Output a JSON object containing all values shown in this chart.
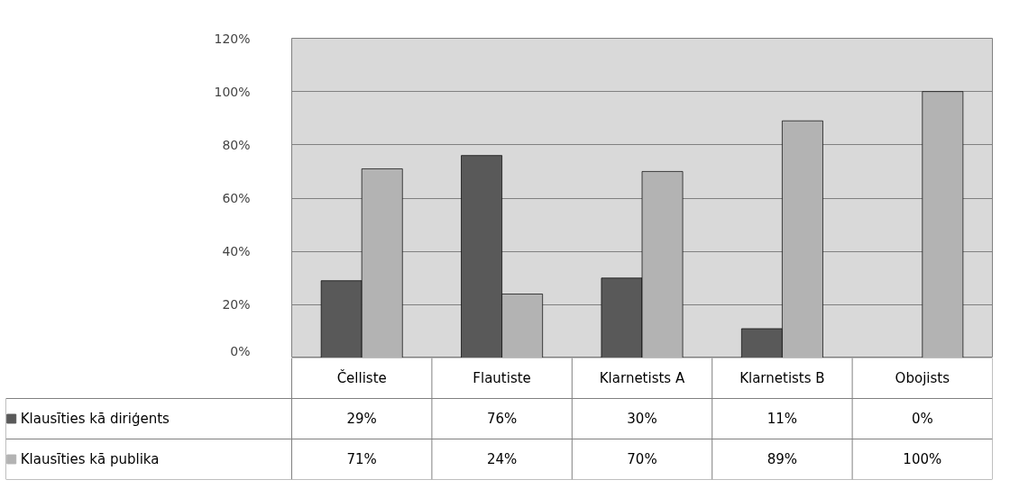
{
  "chart_data": {
    "type": "bar",
    "categories": [
      "Čelliste",
      "Flautiste",
      "Klarnetists A",
      "Klarnetists B",
      "Obojists"
    ],
    "series": [
      {
        "name": "Klausīties kā diriģents",
        "color": "#595959",
        "values": [
          29,
          76,
          30,
          11,
          0
        ],
        "value_labels": [
          "29%",
          "76%",
          "30%",
          "11%",
          "0%"
        ]
      },
      {
        "name": "Klausīties kā publika",
        "color": "#b3b3b3",
        "values": [
          71,
          24,
          70,
          89,
          100
        ],
        "value_labels": [
          "71%",
          "24%",
          "70%",
          "89%",
          "100%"
        ]
      }
    ],
    "ylim": [
      0,
      120
    ],
    "yticks": [
      {
        "value": 0,
        "label": "0%"
      },
      {
        "value": 20,
        "label": "20%"
      },
      {
        "value": 40,
        "label": "40%"
      },
      {
        "value": 60,
        "label": "60%"
      },
      {
        "value": 80,
        "label": "80%"
      },
      {
        "value": 100,
        "label": "100%"
      },
      {
        "value": 120,
        "label": "120%"
      }
    ],
    "grid": "y",
    "legend": "bottom"
  }
}
